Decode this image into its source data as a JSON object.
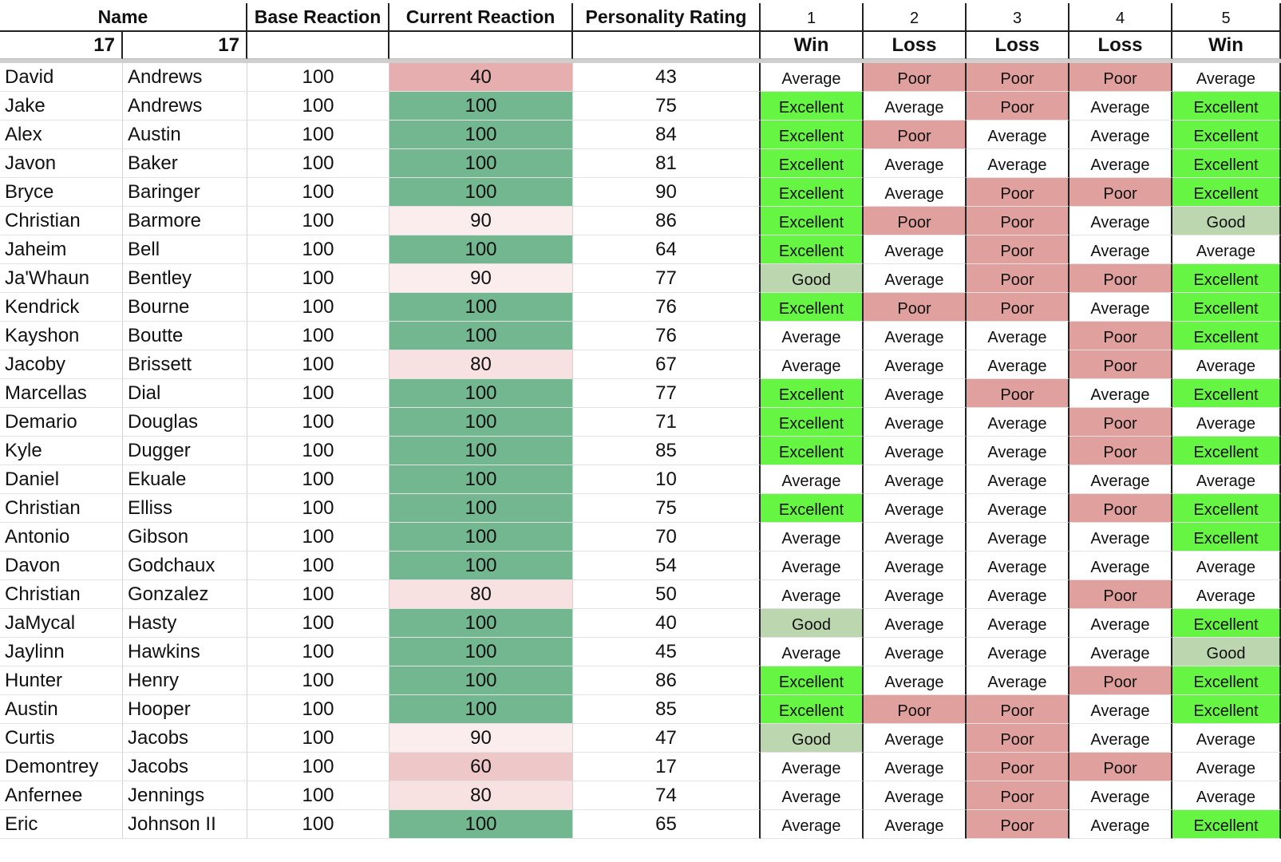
{
  "header": {
    "name_label": "Name",
    "base_reaction_label": "Base Reaction",
    "current_reaction_label": "Current Reaction",
    "personality_rating_label": "Personality Rating",
    "games": [
      "1",
      "2",
      "3",
      "4",
      "5"
    ],
    "first_count": "17",
    "last_count": "17",
    "results": [
      "Win",
      "Loss",
      "Loss",
      "Loss",
      "Win"
    ]
  },
  "rating_colors": {
    "Excellent": "#66f542",
    "Good": "#bcd6b0",
    "Average": "#ffffff",
    "Poor": "#e0a09e"
  },
  "current_reaction_colors": {
    "100": "#72b78f",
    "90": "#fbeded",
    "80": "#f8e1e1",
    "60": "#eec8c8",
    "40": "#e6aeae"
  },
  "rows": [
    {
      "first": "David",
      "last": "Andrews",
      "base": "100",
      "current": "40",
      "personality": "43",
      "games": [
        "Average",
        "Poor",
        "Poor",
        "Poor",
        "Average"
      ]
    },
    {
      "first": "Jake",
      "last": "Andrews",
      "base": "100",
      "current": "100",
      "personality": "75",
      "games": [
        "Excellent",
        "Average",
        "Poor",
        "Average",
        "Excellent"
      ]
    },
    {
      "first": "Alex",
      "last": "Austin",
      "base": "100",
      "current": "100",
      "personality": "84",
      "games": [
        "Excellent",
        "Poor",
        "Average",
        "Average",
        "Excellent"
      ]
    },
    {
      "first": "Javon",
      "last": "Baker",
      "base": "100",
      "current": "100",
      "personality": "81",
      "games": [
        "Excellent",
        "Average",
        "Average",
        "Average",
        "Excellent"
      ]
    },
    {
      "first": "Bryce",
      "last": "Baringer",
      "base": "100",
      "current": "100",
      "personality": "90",
      "games": [
        "Excellent",
        "Average",
        "Poor",
        "Poor",
        "Excellent"
      ]
    },
    {
      "first": "Christian",
      "last": "Barmore",
      "base": "100",
      "current": "90",
      "personality": "86",
      "games": [
        "Excellent",
        "Poor",
        "Poor",
        "Average",
        "Good"
      ]
    },
    {
      "first": "Jaheim",
      "last": "Bell",
      "base": "100",
      "current": "100",
      "personality": "64",
      "games": [
        "Excellent",
        "Average",
        "Poor",
        "Average",
        "Average"
      ]
    },
    {
      "first": "Ja'Whaun",
      "last": "Bentley",
      "base": "100",
      "current": "90",
      "personality": "77",
      "games": [
        "Good",
        "Average",
        "Poor",
        "Poor",
        "Excellent"
      ]
    },
    {
      "first": "Kendrick",
      "last": "Bourne",
      "base": "100",
      "current": "100",
      "personality": "76",
      "games": [
        "Excellent",
        "Poor",
        "Poor",
        "Average",
        "Excellent"
      ]
    },
    {
      "first": "Kayshon",
      "last": "Boutte",
      "base": "100",
      "current": "100",
      "personality": "76",
      "games": [
        "Average",
        "Average",
        "Average",
        "Poor",
        "Excellent"
      ]
    },
    {
      "first": "Jacoby",
      "last": "Brissett",
      "base": "100",
      "current": "80",
      "personality": "67",
      "games": [
        "Average",
        "Average",
        "Average",
        "Poor",
        "Average"
      ]
    },
    {
      "first": "Marcellas",
      "last": "Dial",
      "base": "100",
      "current": "100",
      "personality": "77",
      "games": [
        "Excellent",
        "Average",
        "Poor",
        "Average",
        "Excellent"
      ]
    },
    {
      "first": "Demario",
      "last": "Douglas",
      "base": "100",
      "current": "100",
      "personality": "71",
      "games": [
        "Excellent",
        "Average",
        "Average",
        "Poor",
        "Average"
      ]
    },
    {
      "first": "Kyle",
      "last": "Dugger",
      "base": "100",
      "current": "100",
      "personality": "85",
      "games": [
        "Excellent",
        "Average",
        "Average",
        "Poor",
        "Excellent"
      ]
    },
    {
      "first": "Daniel",
      "last": "Ekuale",
      "base": "100",
      "current": "100",
      "personality": "10",
      "games": [
        "Average",
        "Average",
        "Average",
        "Average",
        "Average"
      ]
    },
    {
      "first": "Christian",
      "last": "Elliss",
      "base": "100",
      "current": "100",
      "personality": "75",
      "games": [
        "Excellent",
        "Average",
        "Average",
        "Poor",
        "Excellent"
      ]
    },
    {
      "first": "Antonio",
      "last": "Gibson",
      "base": "100",
      "current": "100",
      "personality": "70",
      "games": [
        "Average",
        "Average",
        "Average",
        "Average",
        "Excellent"
      ]
    },
    {
      "first": "Davon",
      "last": "Godchaux",
      "base": "100",
      "current": "100",
      "personality": "54",
      "games": [
        "Average",
        "Average",
        "Average",
        "Average",
        "Average"
      ]
    },
    {
      "first": "Christian",
      "last": "Gonzalez",
      "base": "100",
      "current": "80",
      "personality": "50",
      "games": [
        "Average",
        "Average",
        "Average",
        "Poor",
        "Average"
      ]
    },
    {
      "first": "JaMycal",
      "last": "Hasty",
      "base": "100",
      "current": "100",
      "personality": "40",
      "games": [
        "Good",
        "Average",
        "Average",
        "Average",
        "Excellent"
      ]
    },
    {
      "first": "Jaylinn",
      "last": "Hawkins",
      "base": "100",
      "current": "100",
      "personality": "45",
      "games": [
        "Average",
        "Average",
        "Average",
        "Average",
        "Good"
      ]
    },
    {
      "first": "Hunter",
      "last": "Henry",
      "base": "100",
      "current": "100",
      "personality": "86",
      "games": [
        "Excellent",
        "Average",
        "Average",
        "Poor",
        "Excellent"
      ]
    },
    {
      "first": "Austin",
      "last": "Hooper",
      "base": "100",
      "current": "100",
      "personality": "85",
      "games": [
        "Excellent",
        "Poor",
        "Poor",
        "Average",
        "Excellent"
      ]
    },
    {
      "first": "Curtis",
      "last": "Jacobs",
      "base": "100",
      "current": "90",
      "personality": "47",
      "games": [
        "Good",
        "Average",
        "Poor",
        "Average",
        "Average"
      ]
    },
    {
      "first": "Demontrey",
      "last": "Jacobs",
      "base": "100",
      "current": "60",
      "personality": "17",
      "games": [
        "Average",
        "Average",
        "Poor",
        "Poor",
        "Average"
      ]
    },
    {
      "first": "Anfernee",
      "last": "Jennings",
      "base": "100",
      "current": "80",
      "personality": "74",
      "games": [
        "Average",
        "Average",
        "Poor",
        "Average",
        "Average"
      ]
    },
    {
      "first": "Eric",
      "last": "Johnson II",
      "base": "100",
      "current": "100",
      "personality": "65",
      "games": [
        "Average",
        "Average",
        "Poor",
        "Average",
        "Excellent"
      ]
    }
  ]
}
